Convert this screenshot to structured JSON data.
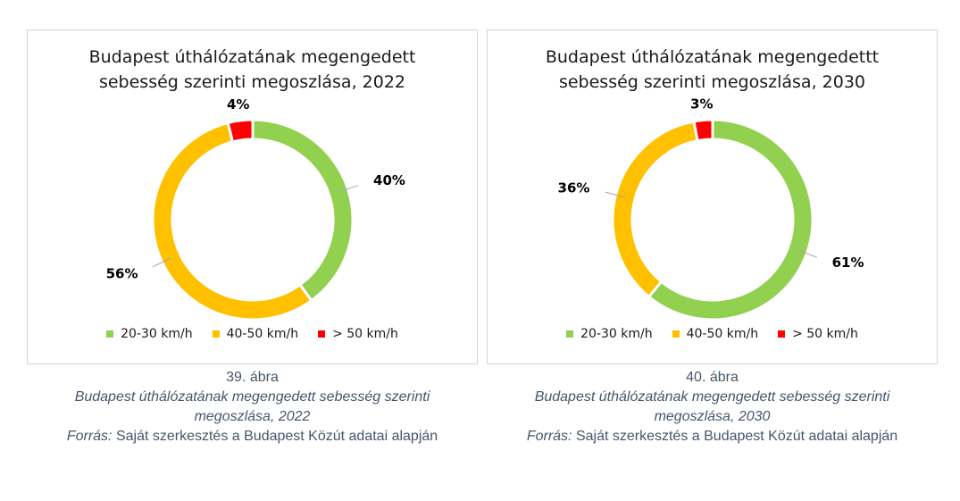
{
  "colors": {
    "20-30": "#92d050",
    "40-50": "#ffc000",
    "over50": "#ff0000"
  },
  "chart_data": [
    {
      "type": "pie",
      "variant": "donut",
      "title": "Budapest úthálózatának megengedett sebesség szerinti megoszlása, 2022",
      "categories": [
        "20-30 km/h",
        "40-50 km/h",
        "> 50 km/h"
      ],
      "values": [
        40,
        56,
        4
      ],
      "labels": [
        "40%",
        "56%",
        "4%"
      ],
      "legend_position": "bottom"
    },
    {
      "type": "pie",
      "variant": "donut",
      "title": "Budapest úthálózatának megengedettt sebesség szerinti megoszlása, 2030",
      "categories": [
        "20-30 km/h",
        "40-50 km/h",
        "> 50 km/h"
      ],
      "values": [
        61,
        36,
        3
      ],
      "labels": [
        "61%",
        "36%",
        "3%"
      ],
      "legend_position": "bottom"
    }
  ],
  "captions": [
    {
      "fig_no": "39. ábra",
      "desc": "Budapest úthálózatának megengedett sebesség szerinti megoszlása, 2022",
      "source_label": "Forrás:",
      "source_text": " Saját szerkesztés a Budapest Közút adatai alapján"
    },
    {
      "fig_no": "40. ábra",
      "desc": "Budapest úthálózatának megengedett sebesség szerinti megoszlása, 2030",
      "source_label": "Forrás:",
      "source_text": " Saját szerkesztés a Budapest Közút adatai alapján"
    }
  ]
}
